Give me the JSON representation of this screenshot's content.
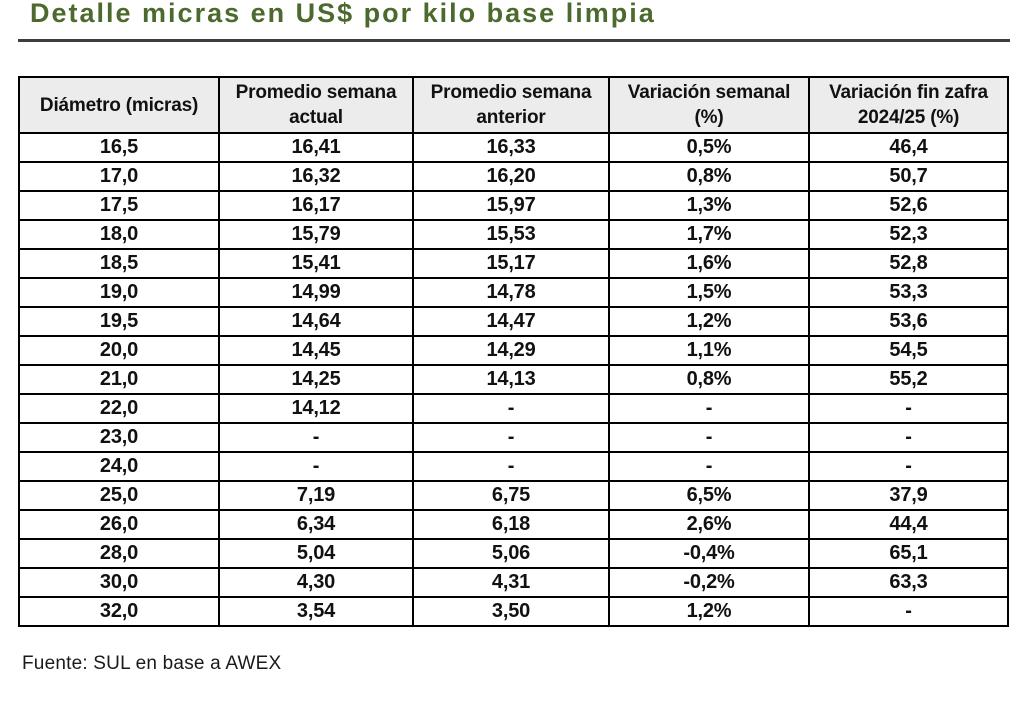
{
  "colors": {
    "title": "#4c6a2d",
    "rule": "#3d3d3d",
    "border": "#000000",
    "text": "#111111",
    "header-bg": "#ececec",
    "group-blue": "#bdd7ee",
    "group-orange": "#f8cbad",
    "group-green": "#a9d08e"
  },
  "title": "Detalle micras en US$ por kilo base limpia",
  "table": {
    "columns": [
      "Diámetro (micras)",
      "Promedio semana\nactual",
      "Promedio semana\nanterior",
      "Variación semanal\n(%)",
      "Variación fin zafra\n2024/25 (%)"
    ],
    "rows": [
      {
        "group": "blue",
        "cells": [
          "16,5",
          "16,41",
          "16,33",
          "0,5%",
          "46,4"
        ]
      },
      {
        "group": "blue",
        "cells": [
          "17,0",
          "16,32",
          "16,20",
          "0,8%",
          "50,7"
        ]
      },
      {
        "group": "blue",
        "cells": [
          "17,5",
          "16,17",
          "15,97",
          "1,3%",
          "52,6"
        ]
      },
      {
        "group": "blue",
        "cells": [
          "18,0",
          "15,79",
          "15,53",
          "1,7%",
          "52,3"
        ]
      },
      {
        "group": "blue",
        "cells": [
          "18,5",
          "15,41",
          "15,17",
          "1,6%",
          "52,8"
        ]
      },
      {
        "group": "blue",
        "cells": [
          "19,0",
          "14,99",
          "14,78",
          "1,5%",
          "53,3"
        ]
      },
      {
        "group": "orange",
        "cells": [
          "19,5",
          "14,64",
          "14,47",
          "1,2%",
          "53,6"
        ]
      },
      {
        "group": "orange",
        "cells": [
          "20,0",
          "14,45",
          "14,29",
          "1,1%",
          "54,5"
        ]
      },
      {
        "group": "orange",
        "cells": [
          "21,0",
          "14,25",
          "14,13",
          "0,8%",
          "55,2"
        ]
      },
      {
        "group": "orange",
        "cells": [
          "22,0",
          "14,12",
          "-",
          "-",
          "-"
        ]
      },
      {
        "group": "orange",
        "cells": [
          "23,0",
          "-",
          "-",
          "-",
          "-"
        ]
      },
      {
        "group": "orange",
        "cells": [
          "24,0",
          "-",
          "-",
          "-",
          "-"
        ]
      },
      {
        "group": "green",
        "cells": [
          "25,0",
          "7,19",
          "6,75",
          "6,5%",
          "37,9"
        ]
      },
      {
        "group": "green",
        "cells": [
          "26,0",
          "6,34",
          "6,18",
          "2,6%",
          "44,4"
        ]
      },
      {
        "group": "green",
        "cells": [
          "28,0",
          "5,04",
          "5,06",
          "-0,4%",
          "65,1"
        ]
      },
      {
        "group": "green",
        "cells": [
          "30,0",
          "4,30",
          "4,31",
          "-0,2%",
          "63,3"
        ]
      },
      {
        "group": "green",
        "cells": [
          "32,0",
          "3,54",
          "3,50",
          "1,2%",
          "-"
        ]
      }
    ]
  },
  "source": "Fuente: SUL en base a AWEX"
}
